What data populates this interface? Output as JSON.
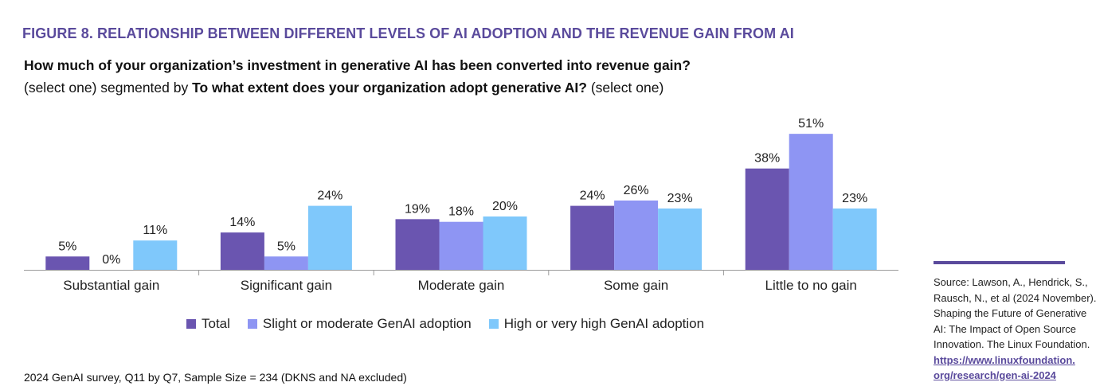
{
  "figure_title": "FIGURE 8. RELATIONSHIP BETWEEN DIFFERENT LEVELS OF AI ADOPTION AND THE REVENUE GAIN FROM AI",
  "question": {
    "main": "How much of your organization’s investment in generative AI has been converted into revenue gain?",
    "prefix": "(select one) segmented by ",
    "segment": "To what extent does your organization adopt generative AI?",
    "suffix": " (select one)"
  },
  "chart_data": {
    "type": "bar",
    "title": "",
    "xlabel": "",
    "ylabel": "",
    "ylim": [
      0,
      55
    ],
    "value_unit": "%",
    "categories": [
      "Substantial gain",
      "Significant gain",
      "Moderate gain",
      "Some gain",
      "Little to no gain"
    ],
    "series": [
      {
        "name": "Total",
        "color": "#6a55b0",
        "values": [
          5,
          14,
          19,
          24,
          38
        ]
      },
      {
        "name": "Slight or moderate GenAI adoption",
        "color": "#8e95f3",
        "values": [
          0,
          5,
          18,
          26,
          51
        ]
      },
      {
        "name": "High or very high GenAI adoption",
        "color": "#7fc8fb",
        "values": [
          11,
          24,
          20,
          23,
          23
        ]
      }
    ],
    "legend_position": "bottom",
    "grid": false
  },
  "footnote": "2024 GenAI survey, Q11 by Q7, Sample Size = 234 (DKNS and NA excluded)",
  "source": {
    "lines": [
      "Source: Lawson, A., Hendrick, S.,",
      "Rausch, N., et al (2024 November).",
      "Shaping the Future of Generative",
      "AI: The Impact of Open Source",
      "Innovation. The Linux Foundation."
    ],
    "link_lines": [
      "https://www.linuxfoundation.",
      "org/research/gen-ai-2024"
    ]
  }
}
